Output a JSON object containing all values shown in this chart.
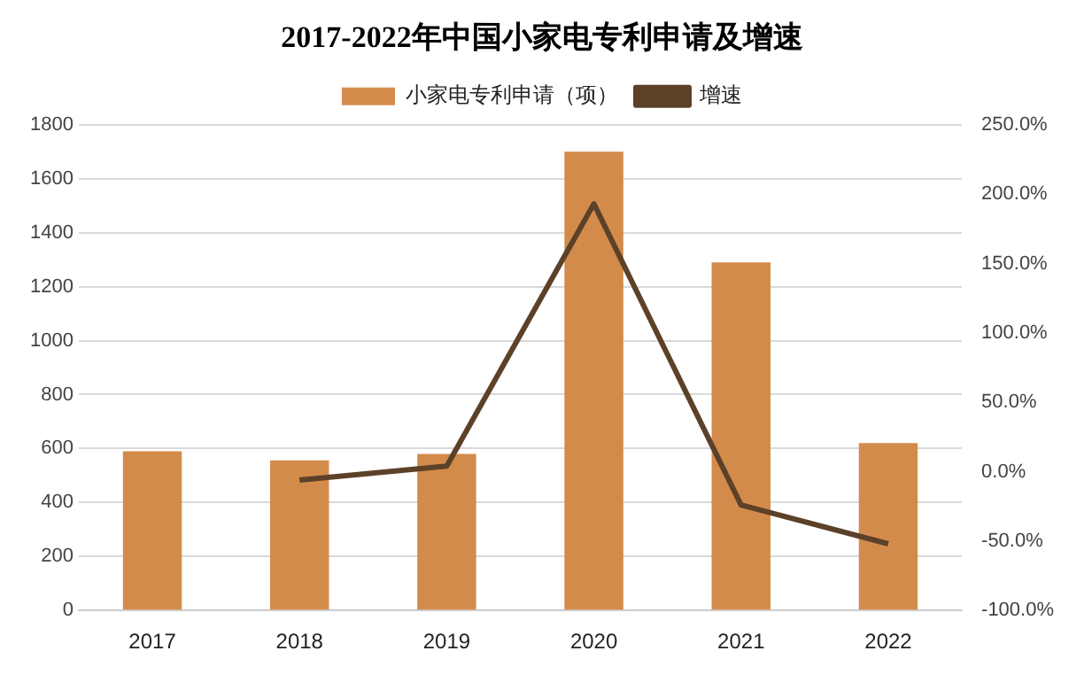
{
  "chart_data": {
    "type": "bar",
    "title": "2017-2022年中国小家电专利申请及增速",
    "categories": [
      "2017",
      "2018",
      "2019",
      "2020",
      "2021",
      "2022"
    ],
    "series": [
      {
        "name": "小家电专利申请（项）",
        "color": "#d38b4c",
        "values": [
          590,
          556,
          580,
          1700,
          1290,
          620
        ]
      },
      {
        "name": "增速",
        "type": "line",
        "axis": "y2",
        "color": "#5c4129",
        "values": [
          null,
          -6,
          4,
          193,
          -24,
          -52
        ]
      }
    ],
    "ylim": [
      0,
      1800
    ],
    "yticks": [
      0,
      200,
      400,
      600,
      800,
      1000,
      1200,
      1400,
      1600,
      1800
    ],
    "y2lim": [
      -100,
      250
    ],
    "y2ticks": [
      {
        "value": -100,
        "label": "-100.0%"
      },
      {
        "value": -50,
        "label": "-50.0%"
      },
      {
        "value": 0,
        "label": "0.0%"
      },
      {
        "value": 50,
        "label": "50.0%"
      },
      {
        "value": 100,
        "label": "100.0%"
      },
      {
        "value": 150,
        "label": "150.0%"
      },
      {
        "value": 200,
        "label": "200.0%"
      },
      {
        "value": 250,
        "label": "250.0%"
      }
    ],
    "grid": "y",
    "legend": "top",
    "marker": "none"
  }
}
